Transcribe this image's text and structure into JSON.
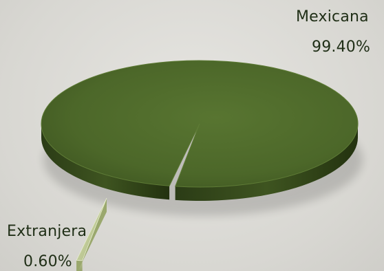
{
  "chart_data": {
    "type": "pie",
    "style": "3d",
    "slices": [
      {
        "name": "Mexicana",
        "value": 99.4,
        "label": "99.40%",
        "color": "#4f6b2a"
      },
      {
        "name": "Extranjera",
        "value": 0.6,
        "label": "0.60%",
        "color": "#c5cf9d"
      }
    ],
    "exploded": "Extranjera",
    "legend": "none"
  }
}
